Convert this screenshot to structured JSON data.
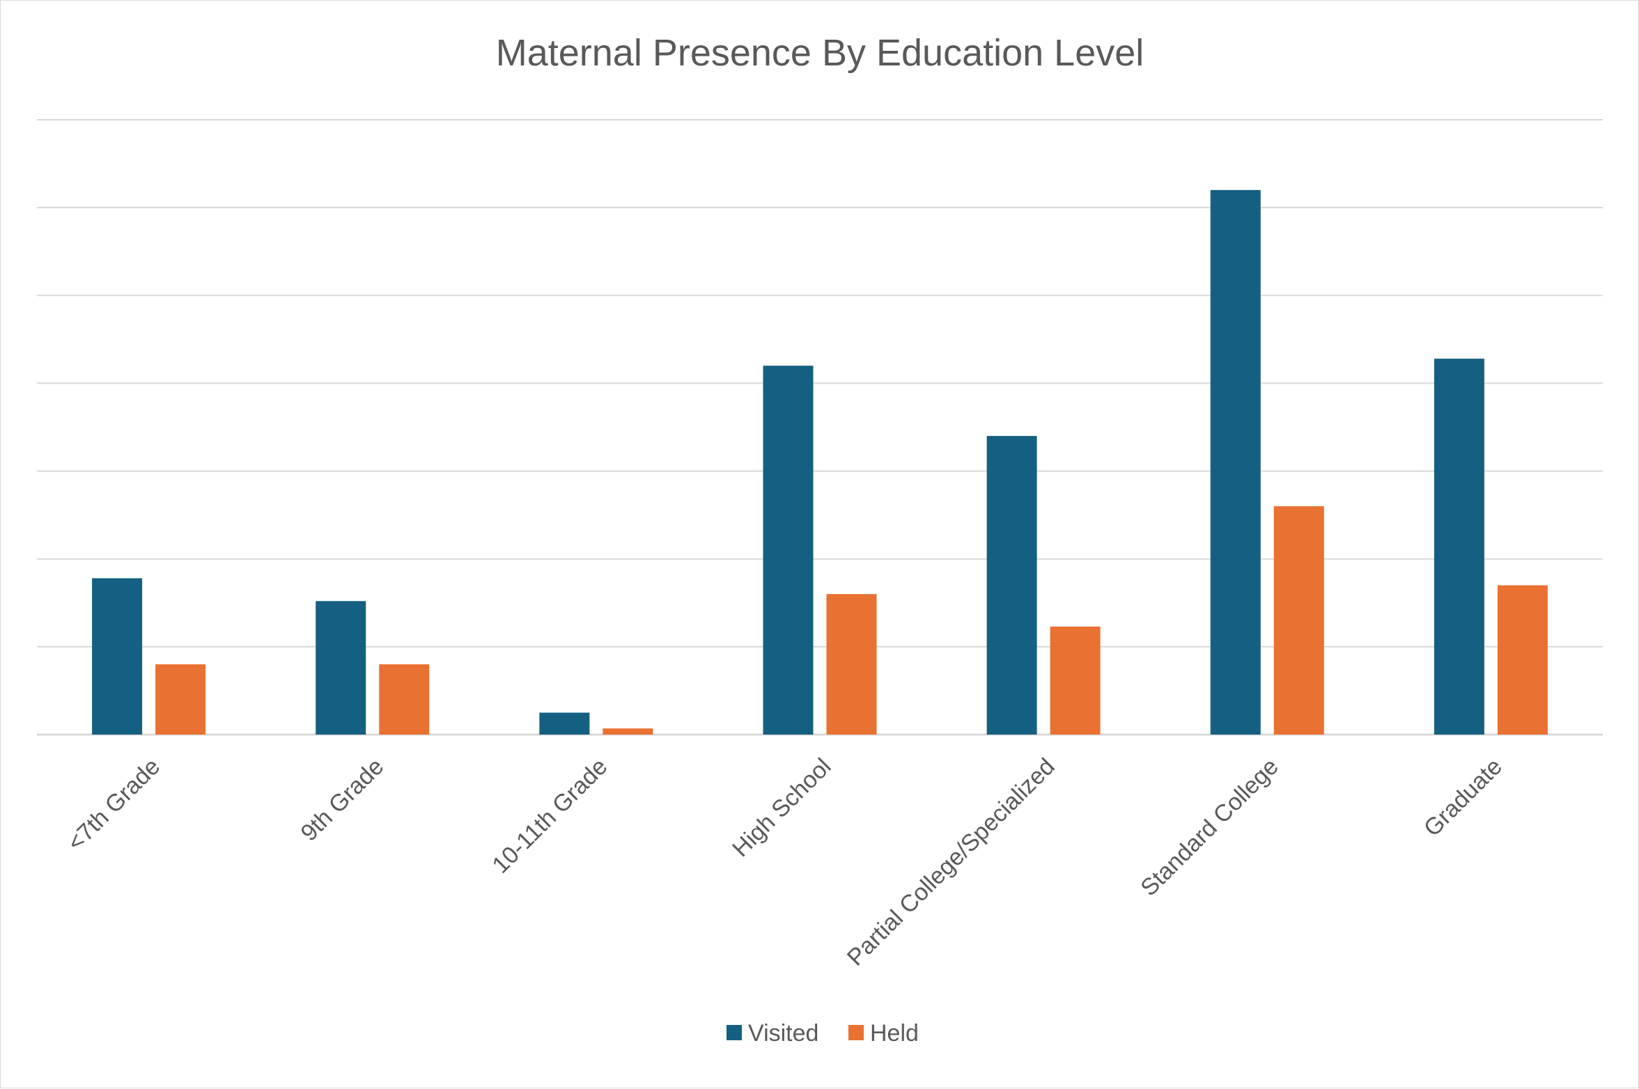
{
  "chart_data": {
    "type": "bar",
    "title": "Maternal Presence By Education Level",
    "xlabel": "",
    "ylabel": "",
    "categories": [
      "<7th Grade",
      "9th Grade",
      "10-11th Grade",
      "High School",
      "Partial College/Specialized",
      "Standard College",
      "Graduate"
    ],
    "series": [
      {
        "name": "Visited",
        "color": "#156082",
        "values": [
          17.8,
          15.2,
          2.5,
          42,
          34,
          62,
          42.8
        ]
      },
      {
        "name": "Held",
        "color": "#E97132",
        "values": [
          8,
          8,
          0.7,
          16,
          12.3,
          26,
          17
        ]
      }
    ],
    "ylim": [
      0,
      70
    ],
    "y_tick_step": 10,
    "grid": true,
    "y_tick_labels_visible": false,
    "legend_position": "bottom"
  }
}
